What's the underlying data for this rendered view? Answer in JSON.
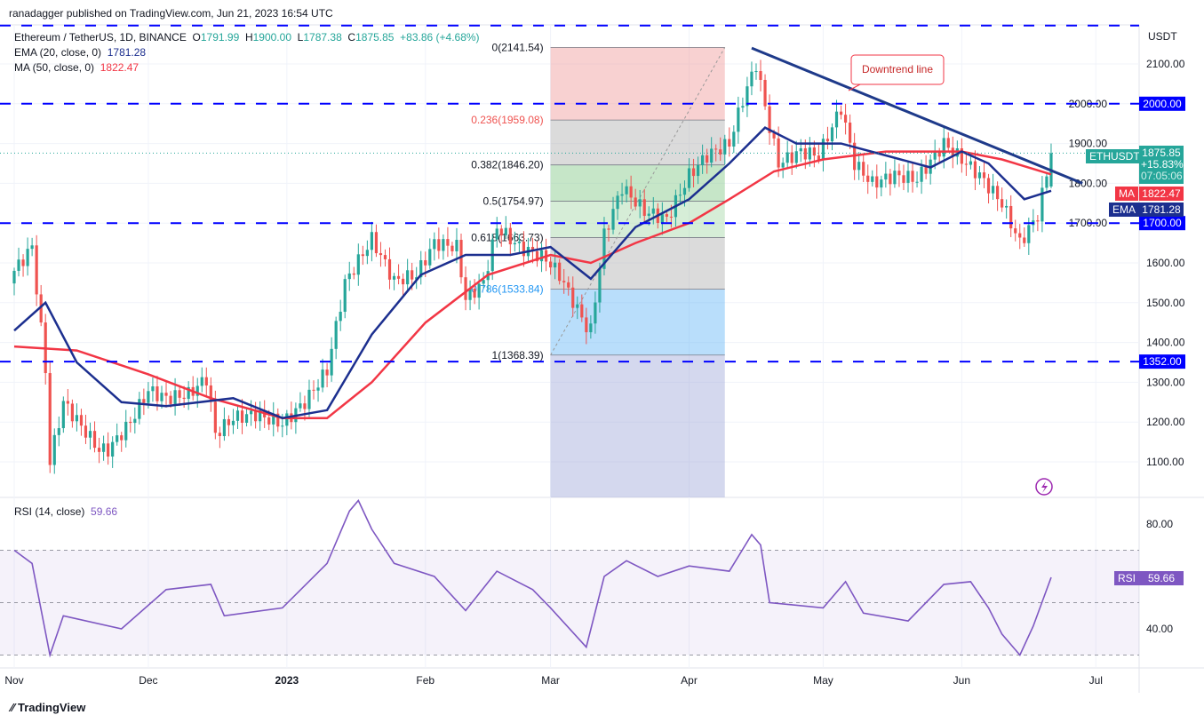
{
  "header": {
    "published": "ranadagger published on TradingView.com, Jun 21, 2023 16:54 UTC",
    "symbol": "Ethereum / TetherUS, 1D, BINANCE",
    "o_label": "O",
    "o": "1791.99",
    "h_label": "H",
    "h": "1900.00",
    "l_label": "L",
    "l": "1787.38",
    "c_label": "C",
    "c": "1875.85",
    "change": "+83.86 (+4.68%)",
    "ema_label": "EMA (20, close, 0)",
    "ema_value": "1781.28",
    "ma_label": "MA (50, close, 0)",
    "ma_value": "1822.47",
    "rsi_label": "RSI (14, close)",
    "rsi_value": "59.66"
  },
  "price_badge": {
    "symbol": "ETHUSDT",
    "price": "1875.85",
    "pct": "+15.83%",
    "countdown": "07:05:06",
    "ma_tag": "MA",
    "ma": "1822.47",
    "ema_tag": "EMA",
    "ema": "1781.28",
    "rsi_tag": "RSI",
    "rsi": "59.66"
  },
  "colors": {
    "up": "#26a69a",
    "down": "#ef5350",
    "ema": "#1c2f8f",
    "ma": "#f23645",
    "hline": "#0000ff",
    "rsi": "#7e57c2",
    "trend": "#1e3a8a"
  },
  "brand": "TradingView",
  "chart_data": [
    {
      "type": "candlestick",
      "title": "Ethereum / TetherUS, 1D, BINANCE",
      "currency_label": "USDT",
      "y_ticks": [
        "2100.00",
        "2000.00",
        "1900.00",
        "1800.00",
        "1700.00",
        "1600.00",
        "1500.00",
        "1400.00",
        "1300.00",
        "1200.00",
        "1100.00"
      ],
      "y_tick_values": [
        2100,
        2000,
        1900,
        1800,
        1700,
        1600,
        1500,
        1400,
        1300,
        1200,
        1100
      ],
      "ylim": [
        1030,
        2180
      ],
      "x_ticks": [
        "Nov",
        "Dec",
        "2023",
        "Feb",
        "Mar",
        "Apr",
        "May",
        "Jun",
        "Jul"
      ],
      "x_tick_dates": [
        "2022-11-01",
        "2022-12-01",
        "2023-01-01",
        "2023-02-01",
        "2023-03-01",
        "2023-04-01",
        "2023-05-01",
        "2023-06-01",
        "2023-07-01"
      ],
      "close": [
        [
          "2022-11-01",
          1580
        ],
        [
          "2022-11-05",
          1640
        ],
        [
          "2022-11-08",
          1330
        ],
        [
          "2022-11-09",
          1100
        ],
        [
          "2022-11-12",
          1250
        ],
        [
          "2022-11-20",
          1130
        ],
        [
          "2022-11-22",
          1130
        ],
        [
          "2022-11-27",
          1200
        ],
        [
          "2022-12-01",
          1280
        ],
        [
          "2022-12-05",
          1260
        ],
        [
          "2022-12-10",
          1270
        ],
        [
          "2022-12-14",
          1310
        ],
        [
          "2022-12-16",
          1170
        ],
        [
          "2022-12-20",
          1210
        ],
        [
          "2022-12-25",
          1220
        ],
        [
          "2022-12-31",
          1195
        ],
        [
          "2023-01-05",
          1250
        ],
        [
          "2023-01-10",
          1330
        ],
        [
          "2023-01-14",
          1550
        ],
        [
          "2023-01-20",
          1660
        ],
        [
          "2023-01-25",
          1555
        ],
        [
          "2023-01-30",
          1570
        ],
        [
          "2023-02-03",
          1650
        ],
        [
          "2023-02-08",
          1640
        ],
        [
          "2023-02-10",
          1510
        ],
        [
          "2023-02-14",
          1550
        ],
        [
          "2023-02-17",
          1690
        ],
        [
          "2023-02-22",
          1640
        ],
        [
          "2023-02-28",
          1610
        ],
        [
          "2023-03-03",
          1570
        ],
        [
          "2023-03-09",
          1440
        ],
        [
          "2023-03-10",
          1430
        ],
        [
          "2023-03-13",
          1670
        ],
        [
          "2023-03-17",
          1790
        ],
        [
          "2023-03-22",
          1730
        ],
        [
          "2023-03-27",
          1710
        ],
        [
          "2023-04-01",
          1820
        ],
        [
          "2023-04-05",
          1870
        ],
        [
          "2023-04-10",
          1900
        ],
        [
          "2023-04-13",
          2010
        ],
        [
          "2023-04-16",
          2100
        ],
        [
          "2023-04-19",
          1940
        ],
        [
          "2023-04-21",
          1850
        ],
        [
          "2023-04-26",
          1880
        ],
        [
          "2023-04-30",
          1870
        ],
        [
          "2023-05-05",
          1990
        ],
        [
          "2023-05-08",
          1850
        ],
        [
          "2023-05-12",
          1800
        ],
        [
          "2023-05-17",
          1820
        ],
        [
          "2023-05-22",
          1810
        ],
        [
          "2023-05-28",
          1900
        ],
        [
          "2023-06-01",
          1860
        ],
        [
          "2023-06-05",
          1820
        ],
        [
          "2023-06-10",
          1750
        ],
        [
          "2023-06-14",
          1650
        ],
        [
          "2023-06-18",
          1720
        ],
        [
          "2023-06-21",
          1875.85
        ]
      ],
      "ema20": [
        [
          "2022-11-01",
          1430
        ],
        [
          "2022-11-08",
          1500
        ],
        [
          "2022-11-15",
          1350
        ],
        [
          "2022-11-25",
          1250
        ],
        [
          "2022-12-05",
          1240
        ],
        [
          "2022-12-20",
          1260
        ],
        [
          "2022-12-31",
          1210
        ],
        [
          "2023-01-10",
          1230
        ],
        [
          "2023-01-20",
          1420
        ],
        [
          "2023-01-31",
          1570
        ],
        [
          "2023-02-10",
          1620
        ],
        [
          "2023-02-20",
          1620
        ],
        [
          "2023-03-01",
          1640
        ],
        [
          "2023-03-10",
          1560
        ],
        [
          "2023-03-20",
          1690
        ],
        [
          "2023-04-01",
          1760
        ],
        [
          "2023-04-10",
          1850
        ],
        [
          "2023-04-18",
          1940
        ],
        [
          "2023-04-25",
          1900
        ],
        [
          "2023-05-05",
          1900
        ],
        [
          "2023-05-15",
          1870
        ],
        [
          "2023-05-25",
          1840
        ],
        [
          "2023-06-01",
          1880
        ],
        [
          "2023-06-07",
          1850
        ],
        [
          "2023-06-15",
          1760
        ],
        [
          "2023-06-21",
          1781.28
        ]
      ],
      "ma50": [
        [
          "2022-11-01",
          1390
        ],
        [
          "2022-11-15",
          1380
        ],
        [
          "2022-12-01",
          1320
        ],
        [
          "2022-12-15",
          1260
        ],
        [
          "2022-12-31",
          1210
        ],
        [
          "2023-01-10",
          1210
        ],
        [
          "2023-01-20",
          1300
        ],
        [
          "2023-02-01",
          1450
        ],
        [
          "2023-02-15",
          1570
        ],
        [
          "2023-03-01",
          1620
        ],
        [
          "2023-03-10",
          1600
        ],
        [
          "2023-03-20",
          1650
        ],
        [
          "2023-04-01",
          1700
        ],
        [
          "2023-04-10",
          1760
        ],
        [
          "2023-04-20",
          1830
        ],
        [
          "2023-05-01",
          1860
        ],
        [
          "2023-05-15",
          1880
        ],
        [
          "2023-06-01",
          1880
        ],
        [
          "2023-06-10",
          1860
        ],
        [
          "2023-06-21",
          1822.47
        ]
      ],
      "horizontal_levels": [
        {
          "value": 2000,
          "label": "2000.00"
        },
        {
          "value": 1700,
          "label": "1700.00"
        },
        {
          "value": 1352,
          "label": "1352.00"
        }
      ],
      "fib_retracement": {
        "start_date": "2023-03-01",
        "end_date": "2023-04-09",
        "levels": [
          {
            "ratio": "0",
            "value": 2141.54,
            "label": "0(2141.54)",
            "color": "#ef9a9a"
          },
          {
            "ratio": "0.236",
            "value": 1959.08,
            "label": "0.236(1959.08)",
            "color": "#b0b0b0"
          },
          {
            "ratio": "0.382",
            "value": 1846.2,
            "label": "0.382(1846.20)",
            "color": "#81c784"
          },
          {
            "ratio": "0.5",
            "value": 1754.97,
            "label": "0.5(1754.97)",
            "color": "#a5d6a7"
          },
          {
            "ratio": "0.618",
            "value": 1663.73,
            "label": "0.618(1663.73)",
            "color": "#b0b0b0"
          },
          {
            "ratio": "0.786",
            "value": 1533.84,
            "label": "0.786(1533.84)",
            "color": "#64b5f6"
          },
          {
            "ratio": "1",
            "value": 1368.39,
            "label": "1(1368.39)",
            "color": "#9fa8da"
          }
        ]
      },
      "trendline": {
        "label": "Downtrend line",
        "from": [
          "2023-04-15",
          2140
        ],
        "to": [
          "2023-06-28",
          1800
        ]
      }
    },
    {
      "type": "line",
      "title": "RSI (14, close)",
      "y_ticks": [
        "80.00",
        "40.00"
      ],
      "y_tick_values": [
        80,
        40
      ],
      "bands": [
        30,
        70
      ],
      "ylim": [
        25,
        92
      ],
      "rsi": [
        [
          "2022-11-01",
          70
        ],
        [
          "2022-11-05",
          65
        ],
        [
          "2022-11-09",
          30
        ],
        [
          "2022-11-12",
          45
        ],
        [
          "2022-11-25",
          40
        ],
        [
          "2022-12-05",
          55
        ],
        [
          "2022-12-15",
          57
        ],
        [
          "2022-12-18",
          45
        ],
        [
          "2022-12-31",
          48
        ],
        [
          "2023-01-10",
          65
        ],
        [
          "2023-01-15",
          85
        ],
        [
          "2023-01-17",
          89
        ],
        [
          "2023-01-20",
          78
        ],
        [
          "2023-01-25",
          65
        ],
        [
          "2023-02-03",
          60
        ],
        [
          "2023-02-10",
          47
        ],
        [
          "2023-02-17",
          62
        ],
        [
          "2023-02-25",
          55
        ],
        [
          "2023-03-01",
          48
        ],
        [
          "2023-03-09",
          33
        ],
        [
          "2023-03-13",
          60
        ],
        [
          "2023-03-18",
          66
        ],
        [
          "2023-03-25",
          60
        ],
        [
          "2023-04-01",
          64
        ],
        [
          "2023-04-10",
          62
        ],
        [
          "2023-04-15",
          76
        ],
        [
          "2023-04-17",
          72
        ],
        [
          "2023-04-19",
          50
        ],
        [
          "2023-05-01",
          48
        ],
        [
          "2023-05-06",
          58
        ],
        [
          "2023-05-10",
          46
        ],
        [
          "2023-05-20",
          43
        ],
        [
          "2023-05-28",
          57
        ],
        [
          "2023-06-03",
          58
        ],
        [
          "2023-06-07",
          48
        ],
        [
          "2023-06-10",
          38
        ],
        [
          "2023-06-14",
          30
        ],
        [
          "2023-06-17",
          41
        ],
        [
          "2023-06-21",
          59.66
        ]
      ]
    }
  ]
}
